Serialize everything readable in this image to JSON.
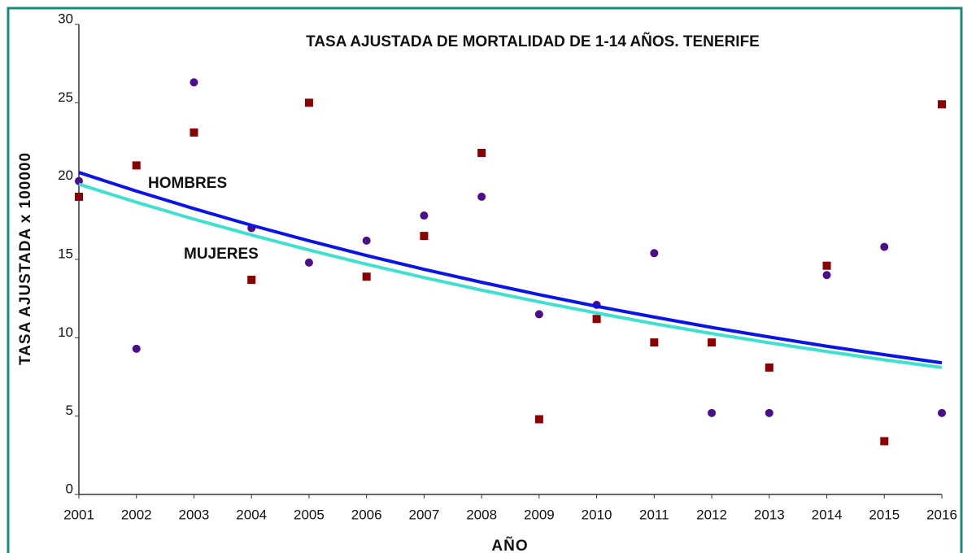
{
  "chart_data": {
    "type": "scatter",
    "title": "TASA AJUSTADA DE MORTALIDAD DE 1-14 AÑOS. TENERIFE",
    "x_label": "AÑO",
    "y_label": "TASA AJUSTADA x 100000",
    "x": [
      2001,
      2002,
      2003,
      2004,
      2005,
      2006,
      2007,
      2008,
      2009,
      2010,
      2011,
      2012,
      2013,
      2014,
      2015,
      2016
    ],
    "xlim": [
      2001,
      2016
    ],
    "xticks": [
      2001,
      2002,
      2003,
      2004,
      2005,
      2006,
      2007,
      2008,
      2009,
      2010,
      2011,
      2012,
      2013,
      2014,
      2015,
      2016
    ],
    "ylim": [
      0,
      30
    ],
    "yticks": [
      0,
      5,
      10,
      15,
      20,
      25,
      30
    ],
    "grid": false,
    "series": [
      {
        "marker": "circle",
        "color": "#4b0f8c",
        "values": [
          20.0,
          9.3,
          26.3,
          17.0,
          14.8,
          16.2,
          17.8,
          19.0,
          11.5,
          12.1,
          15.4,
          5.2,
          5.2,
          14.0,
          15.8,
          5.2
        ]
      },
      {
        "marker": "square",
        "color": "#8b0000",
        "values": [
          19.0,
          21.0,
          23.1,
          13.7,
          25.0,
          13.9,
          16.5,
          21.8,
          4.8,
          11.2,
          9.7,
          9.7,
          8.1,
          14.6,
          3.4,
          24.9
        ]
      },
      {
        "name": "HOMBRES",
        "marker": "line",
        "color": "#0a14e6",
        "label_color": "#29a8e0",
        "values": [
          20.55,
          19.36,
          18.24,
          17.18,
          16.19,
          15.25,
          14.37,
          13.54,
          12.75,
          12.01,
          11.32,
          10.66,
          10.05,
          9.46,
          8.92,
          8.4
        ]
      },
      {
        "name": "MUJERES",
        "marker": "line",
        "color": "#40e0d0",
        "label_color": "#3cc060",
        "values": [
          19.8,
          18.65,
          17.57,
          16.56,
          15.6,
          14.69,
          13.84,
          13.04,
          12.29,
          11.58,
          10.9,
          10.27,
          9.68,
          9.12,
          8.59,
          8.1
        ]
      }
    ]
  }
}
